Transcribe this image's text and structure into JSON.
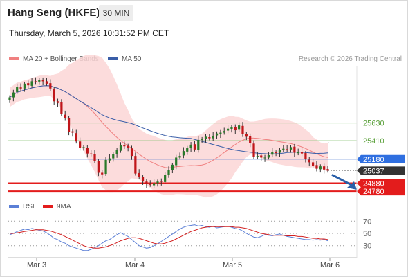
{
  "header": {
    "instrument": "Hang Seng (HKFE)",
    "timeframe": "30 MIN",
    "datetime": "Thursday, March 5, 2026 10:31:52 PM CET"
  },
  "legend": {
    "ma20": "MA 20 + Bollinger Bands",
    "ma50": "MA 50",
    "rsi": "RSI",
    "ma9": "9MA",
    "credit": "Research © 2026 Trading Central"
  },
  "colors": {
    "up": "#2a7a2a",
    "down": "#c0161a",
    "bollinger": "#fbd6d6",
    "ma20": "#f08080",
    "ma50": "#3a5ea8",
    "resistance": "#8cc47a",
    "pivot": "#3d6ccc",
    "support": "#e31c1c",
    "rsi": "#5b7fd6",
    "rsi_ma": "#d22020"
  },
  "chart_data": [
    {
      "type": "candlestick",
      "x_ticks": [
        "Mar 3",
        "Mar 4",
        "Mar 5",
        "Mar 6"
      ],
      "ylim": [
        24660,
        26300
      ],
      "levels": [
        {
          "value": 25630,
          "label": "25630",
          "kind": "resistance"
        },
        {
          "value": 25410,
          "label": "25410",
          "kind": "resistance"
        },
        {
          "value": 25180,
          "label": "25180",
          "kind": "pivot"
        },
        {
          "value": 25037,
          "label": "25037",
          "kind": "last"
        },
        {
          "value": 24880,
          "label": "24880",
          "kind": "support"
        },
        {
          "value": 24780,
          "label": "24780",
          "kind": "support"
        }
      ],
      "close": [
        25950,
        26010,
        26080,
        26060,
        26120,
        26100,
        26150,
        26140,
        26170,
        26150,
        26120,
        26060,
        25900,
        25880,
        25740,
        25690,
        25520,
        25510,
        25400,
        25320,
        25330,
        25250,
        25240,
        25160,
        25010,
        24990,
        25170,
        25190,
        25240,
        25290,
        25350,
        25340,
        25320,
        25220,
        25000,
        24960,
        24900,
        24870,
        24860,
        24880,
        24900,
        24900,
        24980,
        25040,
        25110,
        25200,
        25220,
        25280,
        25320,
        25360,
        25300,
        25420,
        25430,
        25460,
        25440,
        25470,
        25500,
        25510,
        25530,
        25560,
        25580,
        25540,
        25600,
        25490,
        25460,
        25380,
        25210,
        25220,
        25200,
        25200,
        25230,
        25270,
        25260,
        25290,
        25310,
        25300,
        25330,
        25260,
        25270,
        25250,
        25180,
        25140,
        25100,
        25060,
        25090,
        25050,
        25037
      ]
    },
    {
      "type": "line",
      "name": "RSI",
      "ylim": [
        15,
        85
      ],
      "y_ticks": [
        70,
        50,
        30
      ],
      "series": [
        {
          "name": "RSI",
          "values": [
            48,
            50,
            53,
            55,
            57,
            56,
            58,
            57,
            55,
            54,
            51,
            47,
            42,
            40,
            36,
            34,
            30,
            28,
            26,
            24,
            22,
            22,
            24,
            27,
            30,
            34,
            38,
            40,
            44,
            48,
            51,
            48,
            45,
            40,
            35,
            30,
            28,
            26,
            27,
            30,
            33,
            37,
            41,
            45,
            49,
            53,
            57,
            60,
            62,
            63,
            64,
            62,
            63,
            61,
            60,
            62,
            59,
            60,
            61,
            62,
            60,
            58,
            57,
            54,
            50,
            47,
            44,
            43,
            45,
            48,
            47,
            46,
            48,
            49,
            47,
            45,
            44,
            43,
            42,
            41,
            40,
            40,
            39,
            40,
            39,
            40,
            38
          ]
        },
        {
          "name": "9MA",
          "values": [
            50,
            50,
            51,
            52,
            53,
            54,
            55,
            56,
            56,
            56,
            55,
            54,
            52,
            50,
            48,
            45,
            42,
            39,
            36,
            33,
            30,
            28,
            27,
            26,
            26,
            27,
            28,
            30,
            32,
            35,
            38,
            40,
            42,
            43,
            43,
            42,
            40,
            38,
            36,
            34,
            33,
            33,
            34,
            36,
            38,
            41,
            44,
            47,
            50,
            53,
            55,
            57,
            59,
            60,
            61,
            61,
            61,
            61,
            61,
            61,
            61,
            60,
            60,
            59,
            58,
            56,
            54,
            52,
            50,
            49,
            48,
            47,
            47,
            47,
            47,
            46,
            46,
            46,
            45,
            45,
            44,
            43,
            42,
            42,
            41,
            41,
            40
          ]
        }
      ]
    }
  ]
}
